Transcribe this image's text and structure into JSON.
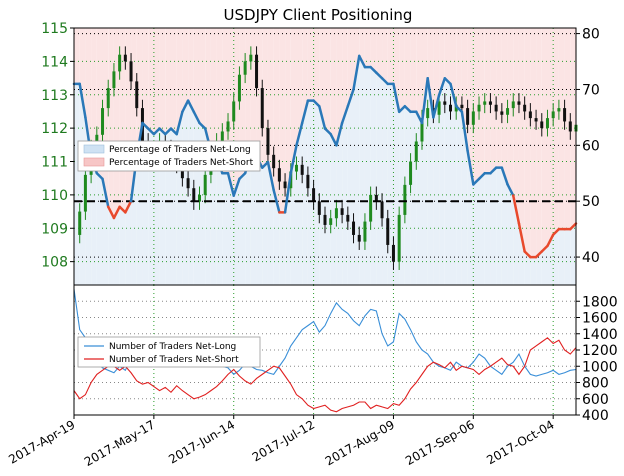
{
  "chart_data": [
    {
      "type": "line",
      "title": "USDJPY Client Positioning",
      "left_axis": {
        "label_color": "#1f7a1f",
        "ylim": [
          107.3,
          115
        ],
        "ticks": [
          "108",
          "109",
          "110",
          "111",
          "112",
          "113",
          "114",
          "115"
        ]
      },
      "right_axis": {
        "ylim": [
          35,
          81
        ],
        "ticks": [
          "40",
          "50",
          "60",
          "70",
          "80"
        ]
      },
      "x_tick_labels": [
        "2017-Apr-19",
        "2017-May-17",
        "2017-Jun-14",
        "2017-Jul-12",
        "2017-Aug-09",
        "2017-Sep-06",
        "2017-Oct-04"
      ],
      "x_days": 176,
      "grid": true,
      "reference_line": {
        "axis": "right",
        "value": 50,
        "style": "dashed",
        "color": "#000000"
      },
      "legend": {
        "placement": "left",
        "entries": [
          "Percentage of Traders Net-Long",
          "Percentage of Traders Net-Short"
        ],
        "colors": {
          "long": "#cfe2f3",
          "short": "#f7c6c6"
        }
      },
      "series": [
        {
          "name": "Percentage of Traders Net-Long",
          "axis": "right",
          "color": "#2a78b8",
          "x_days": [
            0,
            2,
            4,
            6,
            8,
            10,
            12,
            14,
            16,
            18,
            20,
            22,
            24,
            26,
            28,
            30,
            32,
            34,
            36,
            38,
            40,
            42,
            44,
            46,
            48,
            50,
            52,
            54,
            56,
            58,
            60,
            62,
            64,
            66,
            68,
            70,
            72,
            74,
            76,
            78,
            80,
            82,
            84,
            86,
            88,
            90,
            92,
            94,
            96,
            98,
            100,
            102,
            104,
            106,
            108,
            110,
            112,
            114,
            116,
            118,
            120,
            122,
            124,
            126,
            128,
            130,
            132,
            134,
            136,
            138,
            140,
            142,
            144,
            146,
            148,
            150,
            152,
            154,
            156,
            158,
            160,
            162,
            164,
            166,
            168,
            170,
            172,
            174,
            176
          ],
          "values": [
            71,
            71,
            65,
            58,
            55,
            54,
            49,
            47,
            49,
            48,
            50,
            58,
            64,
            63,
            62,
            63,
            62,
            63,
            62,
            66,
            68,
            66,
            64,
            63,
            59,
            58,
            55,
            55,
            51,
            54,
            55,
            58,
            58,
            56,
            57,
            52,
            48,
            48,
            55,
            60,
            64,
            68,
            68,
            67,
            63,
            62,
            60,
            64,
            67,
            70,
            76,
            74,
            74,
            73,
            72,
            71,
            71,
            66,
            67,
            66,
            66,
            64,
            72,
            65,
            69,
            72,
            71,
            67,
            66,
            59,
            53,
            54,
            55,
            55,
            56,
            56,
            53,
            51,
            46,
            41,
            40,
            40,
            41,
            42,
            44,
            45,
            45,
            45,
            46
          ]
        },
        {
          "name": "USDJPY",
          "axis": "left",
          "type": "candlestick",
          "color_up": "#1f8a1f",
          "color_down": "#111111",
          "x_days": [
            0,
            2,
            4,
            6,
            8,
            10,
            12,
            14,
            16,
            18,
            20,
            22,
            24,
            26,
            28,
            30,
            32,
            34,
            36,
            38,
            40,
            42,
            44,
            46,
            48,
            50,
            52,
            54,
            56,
            58,
            60,
            62,
            64,
            66,
            68,
            70,
            72,
            74,
            76,
            78,
            80,
            82,
            84,
            86,
            88,
            90,
            92,
            94,
            96,
            98,
            100,
            102,
            104,
            106,
            108,
            110,
            112,
            114,
            116,
            118,
            120,
            122,
            124,
            126,
            128,
            130,
            132,
            134,
            136,
            138,
            140,
            142,
            144,
            146,
            148,
            150,
            152,
            154,
            156,
            158,
            160,
            162,
            164,
            166,
            168,
            170,
            172,
            174,
            176
          ],
          "values": [
            108.8,
            109.5,
            110.6,
            111.4,
            111.8,
            112.6,
            113.2,
            113.7,
            114.2,
            114.0,
            113.4,
            112.6,
            111.6,
            111.0,
            111.3,
            111.6,
            111.4,
            111.1,
            110.9,
            110.5,
            110.2,
            109.8,
            110.0,
            110.6,
            111.3,
            111.6,
            111.9,
            112.2,
            112.8,
            113.6,
            114.0,
            114.2,
            113.2,
            112.0,
            111.2,
            110.8,
            110.4,
            110.2,
            110.7,
            110.9,
            110.6,
            110.2,
            109.8,
            109.4,
            109.1,
            109.3,
            109.6,
            109.4,
            109.2,
            108.8,
            108.6,
            109.2,
            110.0,
            109.8,
            109.3,
            108.5,
            108.0,
            109.4,
            110.3,
            111.0,
            111.6,
            112.3,
            112.6,
            112.4,
            112.8,
            112.7,
            112.5,
            112.7,
            112.6,
            112.1,
            112.5,
            112.7,
            112.8,
            112.7,
            112.5,
            112.4,
            112.6,
            112.8,
            112.7,
            112.5,
            112.3,
            112.2,
            112.0,
            112.3,
            112.5,
            112.6,
            112.2,
            111.9,
            112.1
          ]
        }
      ]
    },
    {
      "type": "line",
      "ylim": [
        400,
        2000
      ],
      "y_ticks": [
        "400",
        "600",
        "800",
        "1000",
        "1200",
        "1400",
        "1600",
        "1800"
      ],
      "grid": true,
      "legend": {
        "placement": "left",
        "entries": [
          "Number of Traders Net-Long",
          "Number of Traders Net-Short"
        ]
      },
      "series": [
        {
          "name": "Number of Traders Net-Long",
          "color": "#3a8fd8",
          "x_days": [
            0,
            2,
            4,
            6,
            8,
            10,
            12,
            14,
            16,
            18,
            20,
            22,
            24,
            26,
            28,
            30,
            32,
            34,
            36,
            38,
            40,
            42,
            44,
            46,
            48,
            50,
            52,
            54,
            56,
            58,
            60,
            62,
            64,
            66,
            68,
            70,
            72,
            74,
            76,
            78,
            80,
            82,
            84,
            86,
            88,
            90,
            92,
            94,
            96,
            98,
            100,
            102,
            104,
            106,
            108,
            110,
            112,
            114,
            116,
            118,
            120,
            122,
            124,
            126,
            128,
            130,
            132,
            134,
            136,
            138,
            140,
            142,
            144,
            146,
            148,
            150,
            152,
            154,
            156,
            158,
            160,
            162,
            164,
            166,
            168,
            170,
            172,
            174,
            176
          ],
          "values": [
            1950,
            1450,
            1350,
            1150,
            1050,
            980,
            950,
            920,
            1000,
            950,
            1100,
            1250,
            1280,
            1300,
            1220,
            1260,
            1200,
            1280,
            1240,
            1320,
            1300,
            1230,
            1180,
            1150,
            1080,
            1020,
            1000,
            980,
            900,
            950,
            1030,
            1000,
            960,
            950,
            920,
            900,
            1000,
            1100,
            1250,
            1350,
            1450,
            1500,
            1550,
            1420,
            1500,
            1650,
            1780,
            1700,
            1650,
            1560,
            1500,
            1620,
            1700,
            1680,
            1400,
            1250,
            1300,
            1650,
            1580,
            1450,
            1300,
            1200,
            1150,
            1050,
            1000,
            980,
            950,
            1050,
            1000,
            980,
            1050,
            1150,
            1100,
            1000,
            950,
            900,
            1000,
            1050,
            1150,
            1000,
            900,
            880,
            900,
            920,
            950,
            900,
            920,
            950,
            960
          ]
        },
        {
          "name": "Number of Traders Net-Short",
          "color": "#e02020",
          "x_days": [
            0,
            2,
            4,
            6,
            8,
            10,
            12,
            14,
            16,
            18,
            20,
            22,
            24,
            26,
            28,
            30,
            32,
            34,
            36,
            38,
            40,
            42,
            44,
            46,
            48,
            50,
            52,
            54,
            56,
            58,
            60,
            62,
            64,
            66,
            68,
            70,
            72,
            74,
            76,
            78,
            80,
            82,
            84,
            86,
            88,
            90,
            92,
            94,
            96,
            98,
            100,
            102,
            104,
            106,
            108,
            110,
            112,
            114,
            116,
            118,
            120,
            122,
            124,
            126,
            128,
            130,
            132,
            134,
            136,
            138,
            140,
            142,
            144,
            146,
            148,
            150,
            152,
            154,
            156,
            158,
            160,
            162,
            164,
            166,
            168,
            170,
            172,
            174,
            176
          ],
          "values": [
            700,
            600,
            650,
            800,
            900,
            950,
            1000,
            1000,
            950,
            1000,
            920,
            820,
            780,
            800,
            750,
            700,
            740,
            680,
            760,
            700,
            650,
            600,
            620,
            650,
            700,
            750,
            820,
            900,
            960,
            880,
            820,
            780,
            850,
            900,
            950,
            1000,
            980,
            880,
            780,
            650,
            600,
            520,
            480,
            500,
            520,
            460,
            440,
            480,
            500,
            520,
            560,
            560,
            480,
            520,
            500,
            480,
            540,
            520,
            600,
            720,
            800,
            900,
            1000,
            1050,
            1020,
            980,
            1050,
            950,
            1000,
            980,
            960,
            900,
            960,
            1000,
            1050,
            1100,
            1020,
            1000,
            900,
            1000,
            1200,
            1250,
            1300,
            1350,
            1280,
            1320,
            1200,
            1150,
            1230
          ]
        }
      ]
    }
  ]
}
